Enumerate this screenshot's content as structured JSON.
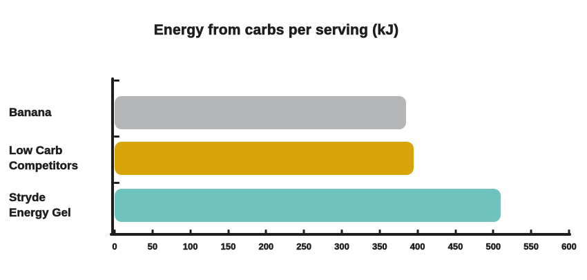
{
  "chart_data": {
    "type": "bar",
    "orientation": "horizontal",
    "title": "Energy from carbs per serving (kJ)",
    "categories": [
      "Banana",
      "Low Carb Competitors",
      "Stryde Energy Gel"
    ],
    "category_label_lines": [
      [
        "Banana"
      ],
      [
        "Low Carb",
        "Competitors"
      ],
      [
        "Stryde",
        "Energy Gel"
      ]
    ],
    "values": [
      385,
      395,
      510
    ],
    "bar_colors": [
      "#b5b6b7",
      "#d7a50a",
      "#6fc3bf"
    ],
    "xlim": [
      0,
      600
    ],
    "x_ticks": [
      0,
      50,
      100,
      150,
      200,
      250,
      300,
      350,
      400,
      450,
      500,
      550,
      600
    ],
    "xlabel": "",
    "grid": "off",
    "legend": "none"
  },
  "colors": {
    "background": "#ffffff",
    "text": "#1e1e1e",
    "axis": "#1e1e1e",
    "bar_banana": "#b5b6b7",
    "bar_low_carb_competitors": "#d7a50a",
    "bar_stryde_energy_gel": "#6fc3bf"
  }
}
